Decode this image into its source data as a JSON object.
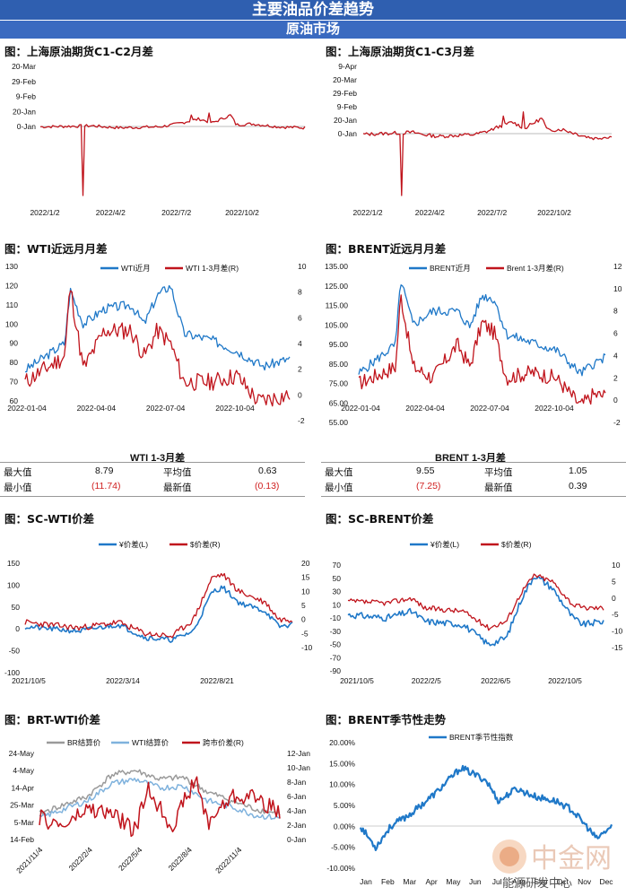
{
  "header": {
    "title": "主要油品价差趋势",
    "subtitle": "原油市场"
  },
  "colors": {
    "banner": "#2f5fb0",
    "blue": "#1f78c8",
    "red": "#c0141c",
    "gray": "#9a9a9a",
    "lightblue": "#7fb2dd",
    "neg": "#d02020"
  },
  "charts": [
    {
      "id": "c1",
      "title": "图：上海原油期货C1-C2月差",
      "type": "line",
      "yticks": [
        "20-Mar",
        "29-Feb",
        "9-Feb",
        "20-Jan",
        "0-Jan"
      ],
      "xticks": [
        "2022/1/2",
        "2022/4/2",
        "2022/7/2",
        "2022/10/2"
      ],
      "series": [
        {
          "name": "",
          "color": "#c0141c"
        }
      ]
    },
    {
      "id": "c2",
      "title": "图：上海原油期货C1-C3月差",
      "type": "line",
      "yticks": [
        "9-Apr",
        "20-Mar",
        "29-Feb",
        "9-Feb",
        "20-Jan",
        "0-Jan"
      ],
      "xticks": [
        "2022/1/2",
        "2022/4/2",
        "2022/7/2",
        "2022/10/2"
      ],
      "series": [
        {
          "name": "",
          "color": "#c0141c"
        }
      ]
    },
    {
      "id": "c3",
      "title": "图：WTI近远月月差",
      "type": "line",
      "yticks": [
        "130",
        "120",
        "110",
        "100",
        "90",
        "80",
        "70",
        "60"
      ],
      "y2ticks": [
        "10",
        "8",
        "6",
        "4",
        "2",
        "0",
        "-2"
      ],
      "xticks": [
        "2022-01-04",
        "2022-04-04",
        "2022-07-04",
        "2022-10-04"
      ],
      "series": [
        {
          "name": "WTI近月",
          "color": "#1f78c8"
        },
        {
          "name": "WTI 1-3月差(R)",
          "color": "#c0141c"
        }
      ]
    },
    {
      "id": "c4",
      "title": "图：BRENT近远月月差",
      "type": "line",
      "yticks": [
        "135.00",
        "125.00",
        "115.00",
        "105.00",
        "95.00",
        "85.00",
        "75.00",
        "65.00",
        "55.00"
      ],
      "y2ticks": [
        "12",
        "10",
        "8",
        "6",
        "4",
        "2",
        "0",
        "-2"
      ],
      "xticks": [
        "2022-01-04",
        "2022-04-04",
        "2022-07-04",
        "2022-10-04"
      ],
      "series": [
        {
          "name": "BRENT近月",
          "color": "#1f78c8"
        },
        {
          "name": "Brent 1-3月差(R)",
          "color": "#c0141c"
        }
      ]
    },
    {
      "id": "c5",
      "title": "图：SC-WTI价差",
      "type": "line",
      "yticks": [
        "150",
        "100",
        "50",
        "0",
        "-50",
        "-100"
      ],
      "y2ticks": [
        "20",
        "15",
        "10",
        "5",
        "0",
        "-5",
        "-10"
      ],
      "xticks": [
        "2021/10/5",
        "2022/3/14",
        "2022/8/21"
      ],
      "series": [
        {
          "name": "¥价差(L)",
          "color": "#1f78c8"
        },
        {
          "name": "$价差(R)",
          "color": "#c0141c"
        }
      ]
    },
    {
      "id": "c6",
      "title": "图：SC-BRENT价差",
      "type": "line",
      "yticks": [
        "70",
        "50",
        "30",
        "10",
        "-10",
        "-30",
        "-50",
        "-70",
        "-90"
      ],
      "y2ticks": [
        "10",
        "5",
        "0",
        "-5",
        "-10",
        "-15"
      ],
      "xticks": [
        "2021/10/5",
        "2022/2/5",
        "2022/6/5",
        "2022/10/5"
      ],
      "series": [
        {
          "name": "¥价差(L)",
          "color": "#1f78c8"
        },
        {
          "name": "$价差(R)",
          "color": "#c0141c"
        }
      ]
    },
    {
      "id": "c7",
      "title": "图：BRT-WTI价差",
      "type": "line",
      "yticks": [
        "24-May",
        "4-May",
        "14-Apr",
        "25-Mar",
        "5-Mar",
        "14-Feb"
      ],
      "y2ticks": [
        "12-Jan",
        "10-Jan",
        "8-Jan",
        "6-Jan",
        "4-Jan",
        "2-Jan",
        "0-Jan"
      ],
      "xticks": [
        "2021/11/4",
        "2022/2/4",
        "2022/5/4",
        "2022/8/4",
        "2022/11/4"
      ],
      "series": [
        {
          "name": "BR结算价",
          "color": "#9a9a9a"
        },
        {
          "name": "WTI结算价",
          "color": "#7fb2dd"
        },
        {
          "name": "跨市价差(R)",
          "color": "#c0141c"
        }
      ]
    },
    {
      "id": "c8",
      "title": "图：BRENT季节性走势",
      "type": "line",
      "yticks": [
        "20.00%",
        "15.00%",
        "10.00%",
        "5.00%",
        "0.00%",
        "-5.00%",
        "-10.00%"
      ],
      "xticks": [
        "Jan",
        "Feb",
        "Mar",
        "Apr",
        "May",
        "Jun",
        "Jul",
        "Aug",
        "Sep",
        "Oct",
        "Nov",
        "Dec"
      ],
      "series": [
        {
          "name": "BRENT季节性指数",
          "color": "#1f78c8"
        }
      ]
    }
  ],
  "stats": [
    {
      "title": "WTI 1-3月差",
      "max_label": "最大值",
      "max": "8.79",
      "avg_label": "平均值",
      "avg": "0.63",
      "min_label": "最小值",
      "min": "(11.74)",
      "last_label": "最新值",
      "last": "(0.13)"
    },
    {
      "title": "BRENT 1-3月差",
      "max_label": "最大值",
      "max": "9.55",
      "avg_label": "平均值",
      "avg": "1.05",
      "min_label": "最小值",
      "min": "(7.25)",
      "last_label": "最新值",
      "last": "0.39"
    }
  ],
  "watermark": {
    "brand": "中金网",
    "account": "能源研发中心"
  }
}
